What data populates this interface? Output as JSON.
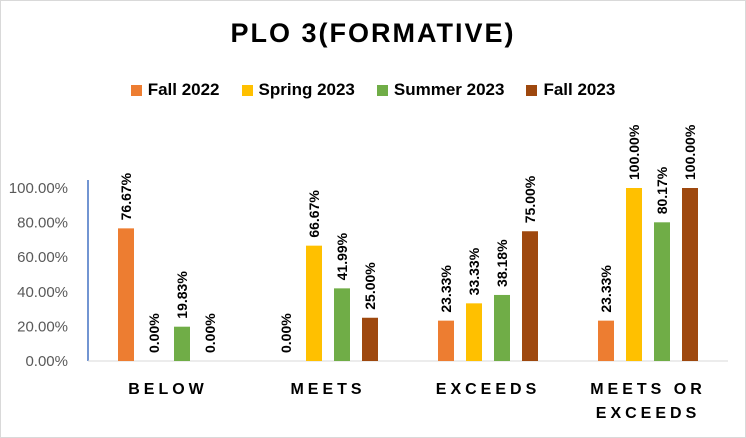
{
  "chart_data": {
    "type": "bar",
    "title": "PLO 3(FORMATIVE)",
    "categories": [
      "BELOW",
      "MEETS",
      "EXCEEDS",
      "MEETS OR EXCEEDS"
    ],
    "category_lines": [
      [
        "BELOW"
      ],
      [
        "MEETS"
      ],
      [
        "EXCEEDS"
      ],
      [
        "MEETS OR",
        "EXCEEDS"
      ]
    ],
    "series": [
      {
        "name": "Fall 2022",
        "color": "#ED7D31",
        "values": [
          76.67,
          0.0,
          23.33,
          23.33
        ],
        "labels": [
          "76.67%",
          "0.00%",
          "23.33%",
          "23.33%"
        ]
      },
      {
        "name": "Spring 2023",
        "color": "#FFC000",
        "values": [
          0.0,
          66.67,
          33.33,
          100.0
        ],
        "labels": [
          "0.00%",
          "66.67%",
          "33.33%",
          "100.00%"
        ]
      },
      {
        "name": "Summer 2023",
        "color": "#70AD47",
        "values": [
          19.83,
          41.99,
          38.18,
          80.17
        ],
        "labels": [
          "19.83%",
          "41.99%",
          "38.18%",
          "80.17%"
        ]
      },
      {
        "name": "Fall 2023",
        "color": "#9E480E",
        "values": [
          0.0,
          25.0,
          75.0,
          100.0
        ],
        "labels": [
          "0.00%",
          "25.00%",
          "75.00%",
          "100.00%"
        ]
      }
    ],
    "yticks": [
      "0.00%",
      "20.00%",
      "40.00%",
      "60.00%",
      "80.00%",
      "100.00%"
    ],
    "ylim": [
      0,
      100
    ],
    "legend": "top",
    "grid": false
  }
}
